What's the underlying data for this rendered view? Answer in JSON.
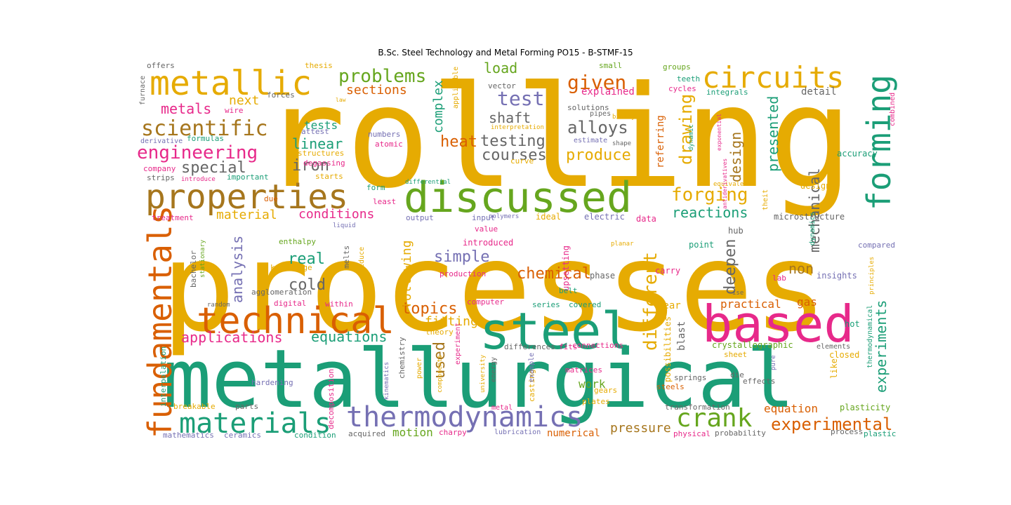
{
  "figure": {
    "title": "B.Sc. Steel Technology and Metal Forming  PO15 - B-STMF-15"
  },
  "palette": {
    "amber": "#e6ab02",
    "green": "#1b9e77",
    "orange": "#d95f02",
    "lime": "#66a61e",
    "pink": "#e7298a",
    "purple": "#7570b3",
    "brown": "#a6761d",
    "gray": "#666666"
  },
  "words": [
    {
      "text": "rolling",
      "color": "amber"
    },
    {
      "text": "processes",
      "color": "amber"
    },
    {
      "text": "metallurgical",
      "color": "green"
    },
    {
      "text": "steel",
      "color": "green"
    },
    {
      "text": "based",
      "color": "pink"
    },
    {
      "text": "discussed",
      "color": "lime"
    },
    {
      "text": "technical",
      "color": "orange"
    },
    {
      "text": "properties",
      "color": "brown"
    },
    {
      "text": "metallic",
      "color": "amber"
    },
    {
      "text": "circuits",
      "color": "amber"
    },
    {
      "text": "forming",
      "color": "green"
    },
    {
      "text": "fundamentals",
      "color": "orange"
    },
    {
      "text": "thermodynamics",
      "color": "purple"
    },
    {
      "text": "materials",
      "color": "green"
    },
    {
      "text": "crank",
      "color": "lime"
    },
    {
      "text": "scientific",
      "color": "brown"
    },
    {
      "text": "engineering",
      "color": "pink"
    },
    {
      "text": "problems",
      "color": "lime"
    },
    {
      "text": "test",
      "color": "purple"
    },
    {
      "text": "given",
      "color": "orange"
    },
    {
      "text": "alloys",
      "color": "gray"
    },
    {
      "text": "testing",
      "color": "gray"
    },
    {
      "text": "courses",
      "color": "gray"
    },
    {
      "text": "produce",
      "color": "amber"
    },
    {
      "text": "forging",
      "color": "amber"
    },
    {
      "text": "different",
      "color": "amber"
    },
    {
      "text": "drawing",
      "color": "amber"
    },
    {
      "text": "design",
      "color": "brown"
    },
    {
      "text": "presented",
      "color": "green"
    },
    {
      "text": "mechanical",
      "color": "gray"
    },
    {
      "text": "deepen",
      "color": "gray"
    },
    {
      "text": "experimental",
      "color": "orange"
    },
    {
      "text": "experiments",
      "color": "green"
    },
    {
      "text": "chemical",
      "color": "orange"
    },
    {
      "text": "analysis",
      "color": "purple"
    },
    {
      "text": "applications",
      "color": "pink"
    },
    {
      "text": "equations",
      "color": "green"
    },
    {
      "text": "topics",
      "color": "orange"
    },
    {
      "text": "fitting",
      "color": "amber"
    },
    {
      "text": "used",
      "color": "brown"
    },
    {
      "text": "following",
      "color": "amber"
    },
    {
      "text": "simple",
      "color": "purple"
    },
    {
      "text": "real",
      "color": "green"
    },
    {
      "text": "cold",
      "color": "gray"
    },
    {
      "text": "heat",
      "color": "orange"
    },
    {
      "text": "complex",
      "color": "green"
    },
    {
      "text": "linear",
      "color": "green"
    },
    {
      "text": "iron",
      "color": "gray"
    },
    {
      "text": "special",
      "color": "gray"
    },
    {
      "text": "metals",
      "color": "pink"
    },
    {
      "text": "next",
      "color": "amber"
    },
    {
      "text": "sections",
      "color": "orange"
    },
    {
      "text": "load",
      "color": "lime"
    },
    {
      "text": "shaft",
      "color": "gray"
    },
    {
      "text": "tests",
      "color": "green"
    },
    {
      "text": "conditions",
      "color": "pink"
    },
    {
      "text": "material",
      "color": "amber"
    },
    {
      "text": "reactions",
      "color": "green"
    },
    {
      "text": "non",
      "color": "brown"
    },
    {
      "text": "equation",
      "color": "orange"
    },
    {
      "text": "pressure",
      "color": "brown"
    },
    {
      "text": "work",
      "color": "lime"
    },
    {
      "text": "motion",
      "color": "lime"
    },
    {
      "text": "practical",
      "color": "orange"
    },
    {
      "text": "gas",
      "color": "orange"
    },
    {
      "text": "numerical",
      "color": "orange"
    },
    {
      "text": "explained",
      "color": "pink"
    },
    {
      "text": "referring",
      "color": "orange"
    },
    {
      "text": "possibilities",
      "color": "amber"
    },
    {
      "text": "detail",
      "color": "gray"
    },
    {
      "text": "blast",
      "color": "gray"
    },
    {
      "text": "gear",
      "color": "amber"
    },
    {
      "text": "hot",
      "color": "green"
    },
    {
      "text": "closed",
      "color": "amber"
    },
    {
      "text": "like",
      "color": "amber"
    },
    {
      "text": "plasticity",
      "color": "lime"
    },
    {
      "text": "crystallographic",
      "color": "lime"
    },
    {
      "text": "insights",
      "color": "purple"
    },
    {
      "text": "compared",
      "color": "purple"
    },
    {
      "text": "microstructure",
      "color": "gray"
    },
    {
      "text": "designs",
      "color": "amber"
    },
    {
      "text": "accuracy",
      "color": "green"
    },
    {
      "text": "hub",
      "color": "gray"
    },
    {
      "text": "point",
      "color": "green"
    },
    {
      "text": "lab",
      "color": "pink"
    },
    {
      "text": "carry",
      "color": "pink"
    },
    {
      "text": "phase",
      "color": "gray"
    },
    {
      "text": "upsetting",
      "color": "pink"
    },
    {
      "text": "ideal",
      "color": "amber"
    },
    {
      "text": "electric",
      "color": "purple"
    },
    {
      "text": "data",
      "color": "pink"
    },
    {
      "text": "introduced",
      "color": "pink"
    },
    {
      "text": "production",
      "color": "pink"
    },
    {
      "text": "computer",
      "color": "pink"
    },
    {
      "text": "series",
      "color": "green"
    },
    {
      "text": "covered",
      "color": "green"
    },
    {
      "text": "belt",
      "color": "green"
    },
    {
      "text": "theory",
      "color": "amber"
    },
    {
      "text": "connections",
      "color": "pink"
    },
    {
      "text": "fits",
      "color": "pink"
    },
    {
      "text": "differences",
      "color": "gray"
    },
    {
      "text": "casting",
      "color": "amber"
    },
    {
      "text": "matrices",
      "color": "pink"
    },
    {
      "text": "gears",
      "color": "amber"
    },
    {
      "text": "plates",
      "color": "amber"
    },
    {
      "text": "springs",
      "color": "gray"
    },
    {
      "text": "die",
      "color": "gray"
    },
    {
      "text": "effects",
      "color": "gray"
    },
    {
      "text": "steels",
      "color": "orange"
    },
    {
      "text": "sheet",
      "color": "amber"
    },
    {
      "text": "elements",
      "color": "gray"
    },
    {
      "text": "transformation",
      "color": "gray"
    },
    {
      "text": "probability",
      "color": "gray"
    },
    {
      "text": "process",
      "color": "gray"
    },
    {
      "text": "plastic",
      "color": "green"
    },
    {
      "text": "physical",
      "color": "pink"
    },
    {
      "text": "lubrication",
      "color": "purple"
    },
    {
      "text": "charpy",
      "color": "pink"
    },
    {
      "text": "acquired",
      "color": "gray"
    },
    {
      "text": "condition",
      "color": "green"
    },
    {
      "text": "ceramics",
      "color": "purple"
    },
    {
      "text": "mathematics",
      "color": "purple"
    },
    {
      "text": "parts",
      "color": "gray"
    },
    {
      "text": "breakable",
      "color": "amber"
    },
    {
      "text": "hardening",
      "color": "purple"
    },
    {
      "text": "interpolation",
      "color": "green"
    },
    {
      "text": "decomposition",
      "color": "pink"
    },
    {
      "text": "kinematics",
      "color": "purple"
    },
    {
      "text": "chemistry",
      "color": "gray"
    },
    {
      "text": "power",
      "color": "amber"
    },
    {
      "text": "experiment",
      "color": "pink"
    },
    {
      "text": "components",
      "color": "amber"
    },
    {
      "text": "university",
      "color": "amber"
    },
    {
      "text": "energy",
      "color": "gray"
    },
    {
      "text": "example",
      "color": "purple"
    },
    {
      "text": "metal",
      "color": "pink"
    },
    {
      "text": "digital",
      "color": "pink"
    },
    {
      "text": "within",
      "color": "pink"
    },
    {
      "text": "random",
      "color": "gray"
    },
    {
      "text": "agglomeration",
      "color": "gray"
    },
    {
      "text": "knowledge",
      "color": "amber"
    },
    {
      "text": "enthalpy",
      "color": "lime"
    },
    {
      "text": "bachelor",
      "color": "gray"
    },
    {
      "text": "stationary",
      "color": "lime"
    },
    {
      "text": "melts",
      "color": "gray"
    },
    {
      "text": "reduce",
      "color": "amber"
    },
    {
      "text": "value",
      "color": "pink"
    },
    {
      "text": "input",
      "color": "purple"
    },
    {
      "text": "output",
      "color": "purple"
    },
    {
      "text": "polymers",
      "color": "purple"
    },
    {
      "text": "liquid",
      "color": "purple"
    },
    {
      "text": "treatment",
      "color": "pink"
    },
    {
      "text": "least",
      "color": "pink"
    },
    {
      "text": "due",
      "color": "orange"
    },
    {
      "text": "form",
      "color": "green"
    },
    {
      "text": "strips",
      "color": "gray"
    },
    {
      "text": "introduce",
      "color": "pink"
    },
    {
      "text": "important",
      "color": "green"
    },
    {
      "text": "starts",
      "color": "amber"
    },
    {
      "text": "differential",
      "color": "green"
    },
    {
      "text": "curve",
      "color": "amber"
    },
    {
      "text": "degassing",
      "color": "pink"
    },
    {
      "text": "company",
      "color": "pink"
    },
    {
      "text": "derivative",
      "color": "purple"
    },
    {
      "text": "formulas",
      "color": "green"
    },
    {
      "text": "attest",
      "color": "purple"
    },
    {
      "text": "structures",
      "color": "amber"
    },
    {
      "text": "atomic",
      "color": "pink"
    },
    {
      "text": "numbers",
      "color": "purple"
    },
    {
      "text": "interpretation",
      "color": "amber"
    },
    {
      "text": "binary",
      "color": "amber"
    },
    {
      "text": "estimate",
      "color": "purple"
    },
    {
      "text": "shape",
      "color": "gray"
    },
    {
      "text": "pipes",
      "color": "gray"
    },
    {
      "text": "solutions",
      "color": "gray"
    },
    {
      "text": "applicable",
      "color": "amber"
    },
    {
      "text": "vector",
      "color": "gray"
    },
    {
      "text": "law",
      "color": "amber"
    },
    {
      "text": "wire",
      "color": "pink"
    },
    {
      "text": "forces",
      "color": "gray"
    },
    {
      "text": "furnace",
      "color": "gray"
    },
    {
      "text": "offers",
      "color": "gray"
    },
    {
      "text": "thesis",
      "color": "amber"
    },
    {
      "text": "small",
      "color": "lime"
    },
    {
      "text": "groups",
      "color": "lime"
    },
    {
      "text": "teeth",
      "color": "green"
    },
    {
      "text": "cycles",
      "color": "pink"
    },
    {
      "text": "integrals",
      "color": "green"
    },
    {
      "text": "dynamic",
      "color": "green"
    },
    {
      "text": "exponential",
      "color": "pink"
    },
    {
      "text": "combined",
      "color": "pink"
    },
    {
      "text": "equivalent",
      "color": "amber"
    },
    {
      "text": "antiderivatives",
      "color": "pink"
    },
    {
      "text": "theit",
      "color": "amber"
    },
    {
      "text": "dynamics",
      "color": "green"
    },
    {
      "text": "planar",
      "color": "amber"
    },
    {
      "text": "ise",
      "color": "gray"
    },
    {
      "text": "thermodynamical",
      "color": "green"
    },
    {
      "text": "principles",
      "color": "amber"
    },
    {
      "text": "pure",
      "color": "purple"
    }
  ]
}
